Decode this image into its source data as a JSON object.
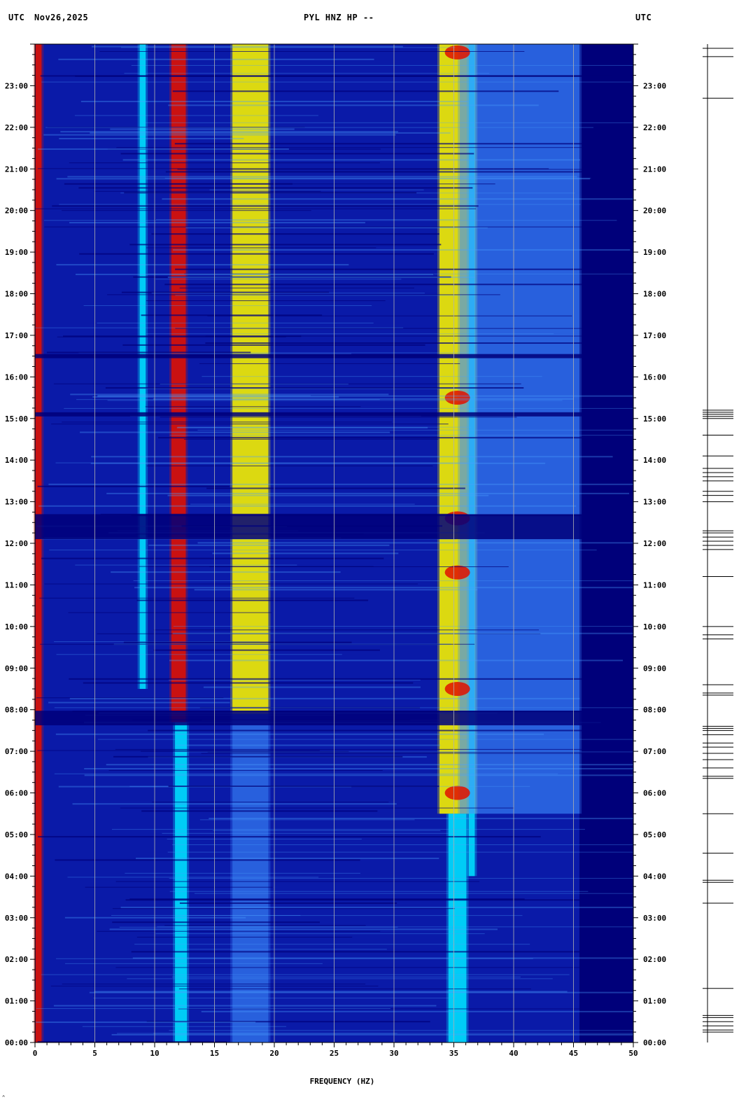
{
  "header": {
    "left_tz": "UTC",
    "date": "Nov26,2025",
    "station": "PYL HNZ HP --",
    "right_tz": "UTC"
  },
  "colors": {
    "background_blue": "#0a1aa8",
    "deep_blue": "#00007a",
    "cyan": "#00e0ff",
    "yellow": "#f5f000",
    "red": "#e01000",
    "gridline": "#b0b0b0"
  },
  "chart_data": {
    "type": "heatmap",
    "title": "PYL HNZ HP --",
    "xlabel": "FREQUENCY (HZ)",
    "ylabel": "UTC",
    "xlim": [
      0,
      50
    ],
    "ylim": [
      0,
      24
    ],
    "x_ticks": [
      "0",
      "5",
      "10",
      "15",
      "20",
      "25",
      "30",
      "35",
      "40",
      "45",
      "50"
    ],
    "y_ticks": [
      "00:00",
      "01:00",
      "02:00",
      "03:00",
      "04:00",
      "05:00",
      "06:00",
      "07:00",
      "08:00",
      "09:00",
      "10:00",
      "11:00",
      "12:00",
      "13:00",
      "14:00",
      "15:00",
      "16:00",
      "17:00",
      "18:00",
      "19:00",
      "20:00",
      "21:00",
      "22:00",
      "23:00"
    ],
    "bands": [
      {
        "freq_center": 0.3,
        "width": 0.5,
        "t_start": 0,
        "t_end": 24,
        "level": "red"
      },
      {
        "freq_center": 12.0,
        "width": 1.2,
        "t_start": 7.7,
        "t_end": 24,
        "level": "red"
      },
      {
        "freq_center": 12.2,
        "width": 1.0,
        "t_start": 0,
        "t_end": 7.7,
        "level": "cyan"
      },
      {
        "freq_center": 18.0,
        "width": 3.0,
        "t_start": 7.9,
        "t_end": 24,
        "level": "yellow"
      },
      {
        "freq_center": 18.0,
        "width": 3.0,
        "t_start": 0,
        "t_end": 7.9,
        "level": "light-blue"
      },
      {
        "freq_center": 9.0,
        "width": 0.5,
        "t_start": 8.5,
        "t_end": 24,
        "level": "cyan"
      },
      {
        "freq_center": 35.3,
        "width": 3.0,
        "t_start": 5.5,
        "t_end": 24,
        "level": "yellow"
      },
      {
        "freq_center": 35.3,
        "width": 1.5,
        "t_start": 0,
        "t_end": 5.5,
        "level": "cyan"
      },
      {
        "freq_center": 36.5,
        "width": 0.5,
        "t_start": 4,
        "t_end": 24,
        "level": "cyan"
      },
      {
        "freq_center": 40.5,
        "width": 10.0,
        "t_start": 5.5,
        "t_end": 24,
        "level": "light-blue"
      }
    ],
    "dark_horizontal_gaps": [
      {
        "t": 7.8,
        "width": 0.35
      },
      {
        "t": 12.4,
        "width": 0.6
      },
      {
        "t": 16.5,
        "width": 0.1
      },
      {
        "t": 15.1,
        "width": 0.1
      }
    ],
    "hot_spots": [
      {
        "freq": 35.3,
        "t": 12.6,
        "level": "red"
      },
      {
        "freq": 35.3,
        "t": 11.3,
        "level": "red"
      },
      {
        "freq": 35.3,
        "t": 23.8,
        "level": "red"
      },
      {
        "freq": 35.3,
        "t": 15.5,
        "level": "red"
      },
      {
        "freq": 35.3,
        "t": 6.0,
        "level": "red"
      },
      {
        "freq": 35.3,
        "t": 8.5,
        "level": "red"
      }
    ],
    "grid": true
  },
  "xlabel_text": "FREQUENCY (HZ)"
}
